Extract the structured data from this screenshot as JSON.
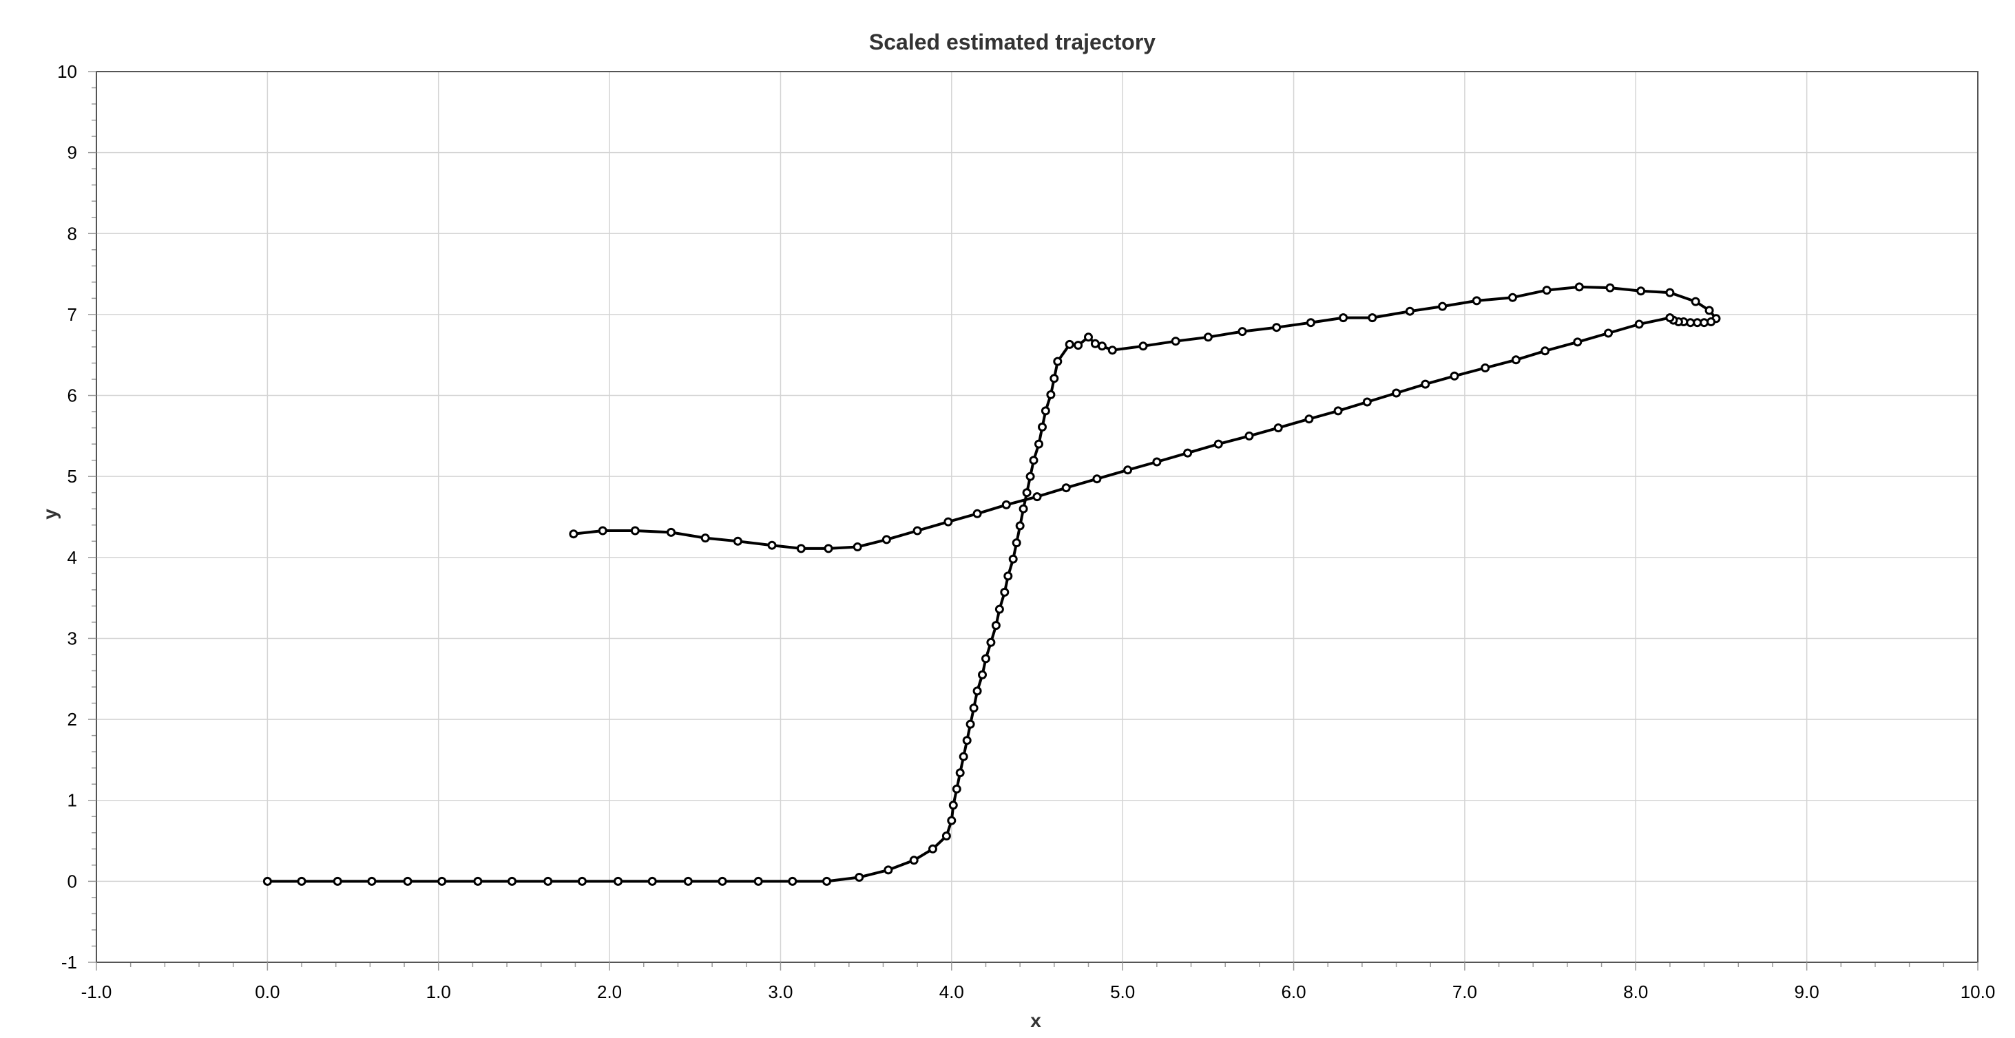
{
  "chart_data": {
    "type": "line",
    "title": "Scaled estimated trajectory",
    "xlabel": "x",
    "ylabel": "y",
    "xlim": [
      -1,
      10
    ],
    "ylim": [
      -1,
      10
    ],
    "grid": true,
    "x_ticks": [
      "-1.0",
      "0.0",
      "1.0",
      "2.0",
      "3.0",
      "4.0",
      "5.0",
      "6.0",
      "7.0",
      "8.0",
      "9.0",
      "10.0"
    ],
    "y_ticks": [
      "-1",
      "0",
      "1",
      "2",
      "3",
      "4",
      "5",
      "6",
      "7",
      "8",
      "9",
      "10"
    ],
    "line_color": "#000000",
    "marker": "open-circle",
    "series": [
      {
        "points": [
          [
            0.0,
            0.0
          ],
          [
            0.2,
            0.0
          ],
          [
            0.41,
            0.0
          ],
          [
            0.61,
            0.0
          ],
          [
            0.82,
            0.0
          ],
          [
            1.02,
            0.0
          ],
          [
            1.23,
            0.0
          ],
          [
            1.43,
            0.0
          ],
          [
            1.64,
            0.0
          ],
          [
            1.84,
            0.0
          ],
          [
            2.05,
            0.0
          ],
          [
            2.25,
            0.0
          ],
          [
            2.46,
            0.0
          ],
          [
            2.66,
            0.0
          ],
          [
            2.87,
            0.0
          ],
          [
            3.07,
            0.0
          ],
          [
            3.27,
            0.0
          ],
          [
            3.46,
            0.05
          ],
          [
            3.63,
            0.14
          ],
          [
            3.78,
            0.26
          ],
          [
            3.89,
            0.4
          ],
          [
            3.97,
            0.56
          ],
          [
            4.0,
            0.75
          ],
          [
            4.01,
            0.94
          ],
          [
            4.03,
            1.14
          ],
          [
            4.05,
            1.34
          ],
          [
            4.07,
            1.54
          ],
          [
            4.09,
            1.74
          ],
          [
            4.11,
            1.94
          ],
          [
            4.13,
            2.14
          ],
          [
            4.15,
            2.35
          ],
          [
            4.18,
            2.55
          ],
          [
            4.2,
            2.75
          ],
          [
            4.23,
            2.95
          ],
          [
            4.26,
            3.16
          ],
          [
            4.28,
            3.36
          ],
          [
            4.31,
            3.57
          ],
          [
            4.33,
            3.77
          ],
          [
            4.36,
            3.98
          ],
          [
            4.38,
            4.18
          ],
          [
            4.4,
            4.39
          ],
          [
            4.42,
            4.6
          ],
          [
            4.44,
            4.8
          ],
          [
            4.46,
            5.0
          ],
          [
            4.48,
            5.2
          ],
          [
            4.51,
            5.4
          ],
          [
            4.53,
            5.61
          ],
          [
            4.55,
            5.81
          ],
          [
            4.58,
            6.01
          ],
          [
            4.6,
            6.21
          ],
          [
            4.62,
            6.42
          ],
          [
            4.69,
            6.63
          ],
          [
            4.74,
            6.62
          ],
          [
            4.8,
            6.72
          ],
          [
            4.84,
            6.64
          ],
          [
            4.88,
            6.61
          ],
          [
            4.94,
            6.56
          ],
          [
            5.12,
            6.61
          ],
          [
            5.31,
            6.67
          ],
          [
            5.5,
            6.72
          ],
          [
            5.7,
            6.79
          ],
          [
            5.9,
            6.84
          ],
          [
            6.1,
            6.9
          ],
          [
            6.29,
            6.96
          ],
          [
            6.46,
            6.96
          ],
          [
            6.68,
            7.04
          ],
          [
            6.87,
            7.1
          ],
          [
            7.07,
            7.17
          ],
          [
            7.28,
            7.21
          ],
          [
            7.48,
            7.3
          ],
          [
            7.67,
            7.34
          ],
          [
            7.85,
            7.33
          ],
          [
            8.03,
            7.29
          ],
          [
            8.2,
            7.27
          ],
          [
            8.35,
            7.16
          ],
          [
            8.43,
            7.05
          ],
          [
            8.47,
            6.95
          ],
          [
            8.44,
            6.91
          ],
          [
            8.4,
            6.9
          ],
          [
            8.36,
            6.9
          ],
          [
            8.32,
            6.9
          ],
          [
            8.28,
            6.91
          ],
          [
            8.25,
            6.91
          ],
          [
            8.22,
            6.93
          ],
          [
            8.2,
            6.96
          ],
          [
            8.02,
            6.88
          ],
          [
            7.84,
            6.77
          ],
          [
            7.66,
            6.66
          ],
          [
            7.47,
            6.55
          ],
          [
            7.3,
            6.44
          ],
          [
            7.12,
            6.34
          ],
          [
            6.94,
            6.24
          ],
          [
            6.77,
            6.14
          ],
          [
            6.6,
            6.03
          ],
          [
            6.43,
            5.92
          ],
          [
            6.26,
            5.81
          ],
          [
            6.09,
            5.71
          ],
          [
            5.91,
            5.6
          ],
          [
            5.74,
            5.5
          ],
          [
            5.56,
            5.4
          ],
          [
            5.38,
            5.29
          ],
          [
            5.2,
            5.18
          ],
          [
            5.03,
            5.08
          ],
          [
            4.85,
            4.97
          ],
          [
            4.67,
            4.86
          ],
          [
            4.5,
            4.75
          ],
          [
            4.32,
            4.65
          ],
          [
            4.15,
            4.54
          ],
          [
            3.98,
            4.44
          ],
          [
            3.8,
            4.33
          ],
          [
            3.62,
            4.22
          ],
          [
            3.45,
            4.13
          ],
          [
            3.28,
            4.11
          ],
          [
            3.12,
            4.11
          ],
          [
            2.95,
            4.15
          ],
          [
            2.75,
            4.2
          ],
          [
            2.56,
            4.24
          ],
          [
            2.36,
            4.31
          ],
          [
            2.15,
            4.33
          ],
          [
            1.96,
            4.33
          ],
          [
            1.79,
            4.29
          ]
        ]
      }
    ]
  }
}
